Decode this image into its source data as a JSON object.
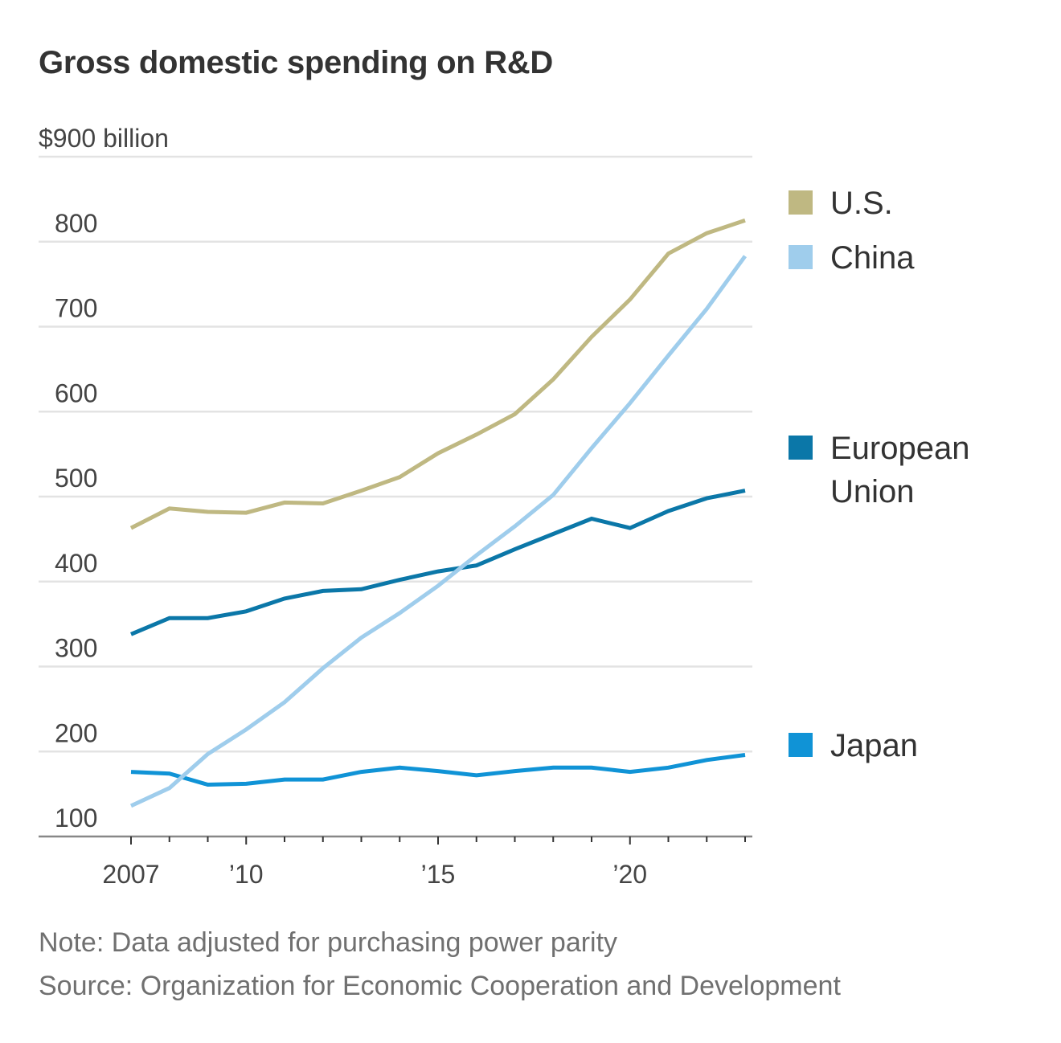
{
  "title": "Gross domestic spending on R&D",
  "note": "Note: Data adjusted for purchasing power parity",
  "source": "Source: Organization for Economic Cooperation and Development",
  "chart_data": {
    "type": "line",
    "title": "Gross domestic spending on R&D",
    "y_unit_label": "$900 billion",
    "ylim": [
      100,
      900
    ],
    "y_ticks": [
      100,
      200,
      300,
      400,
      500,
      600,
      700,
      800,
      900
    ],
    "y_tick_labels": [
      "100",
      "200",
      "300",
      "400",
      "500",
      "600",
      "700",
      "800",
      "$900 billion"
    ],
    "xlim": [
      2007,
      2023
    ],
    "x_ticks": [
      2007,
      2008,
      2009,
      2010,
      2011,
      2012,
      2013,
      2014,
      2015,
      2016,
      2017,
      2018,
      2019,
      2020,
      2021,
      2022,
      2023
    ],
    "x_tick_labels": [
      {
        "x": 2007,
        "label": "2007"
      },
      {
        "x": 2010,
        "label": "’10"
      },
      {
        "x": 2015,
        "label": "’15"
      },
      {
        "x": 2020,
        "label": "’20"
      }
    ],
    "grid": true,
    "legend_position": "right",
    "x": [
      2007,
      2008,
      2009,
      2010,
      2011,
      2012,
      2013,
      2014,
      2015,
      2016,
      2017,
      2018,
      2019,
      2020,
      2021,
      2022,
      2023
    ],
    "series": [
      {
        "name": "U.S.",
        "color": "#bfb882",
        "values": [
          463,
          486,
          482,
          481,
          493,
          492,
          507,
          523,
          551,
          573,
          597,
          638,
          688,
          732,
          786,
          810,
          825
        ]
      },
      {
        "name": "China",
        "color": "#9fcdec",
        "values": [
          136,
          157,
          197,
          226,
          258,
          298,
          334,
          363,
          395,
          431,
          465,
          502,
          557,
          610,
          666,
          721,
          783
        ]
      },
      {
        "name": "European Union",
        "color": "#0b77a8",
        "values": [
          338,
          357,
          357,
          365,
          380,
          389,
          391,
          402,
          412,
          419,
          438,
          456,
          474,
          463,
          483,
          498,
          507
        ]
      },
      {
        "name": "Japan",
        "color": "#1093d6",
        "values": [
          176,
          174,
          161,
          162,
          167,
          167,
          176,
          181,
          177,
          172,
          177,
          181,
          181,
          176,
          181,
          190,
          196
        ]
      }
    ],
    "legend": [
      {
        "label_lines": [
          "U.S."
        ],
        "color": "#bfb882"
      },
      {
        "label_lines": [
          "China"
        ],
        "color": "#9fcdec"
      },
      {
        "label_lines": [
          "European",
          "Union"
        ],
        "color": "#0b77a8"
      },
      {
        "label_lines": [
          "Japan"
        ],
        "color": "#1093d6"
      }
    ]
  }
}
